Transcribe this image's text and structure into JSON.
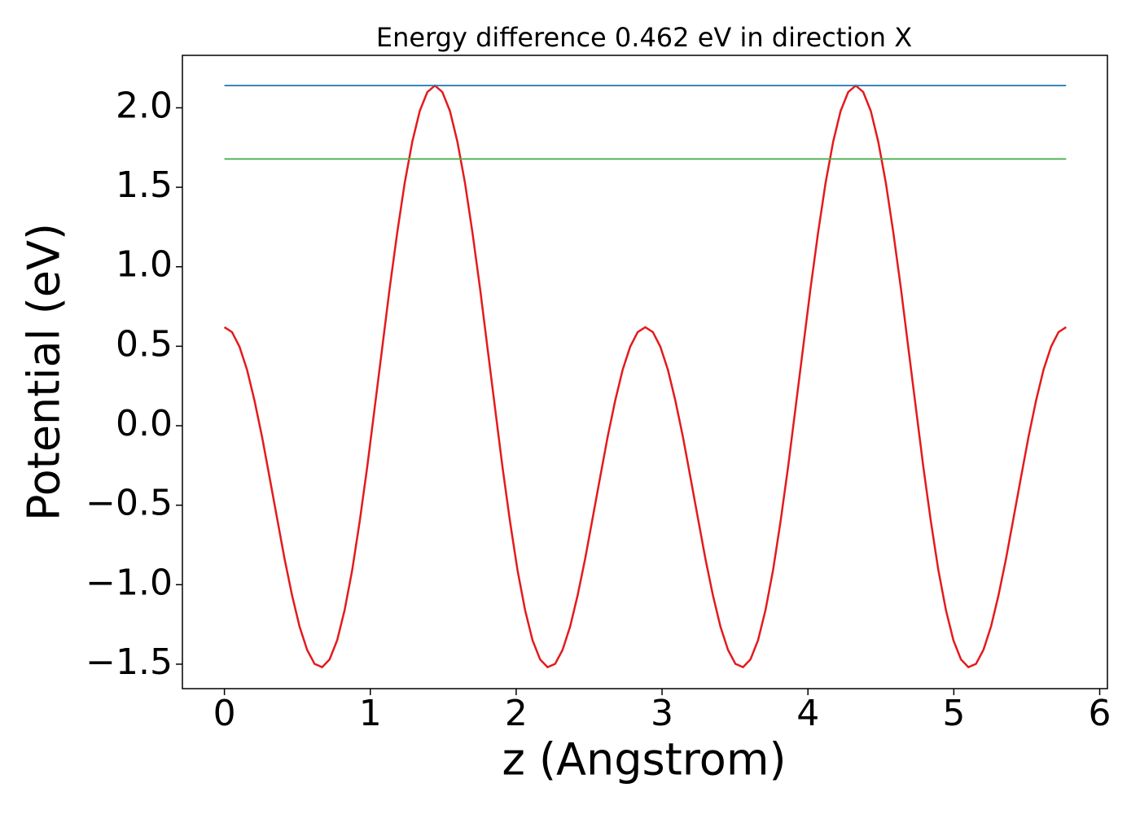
{
  "chart_data": {
    "type": "line",
    "title": "Energy difference 0.462 eV in direction X",
    "xlabel": "z (Angstrom)",
    "ylabel": "Potential (eV)",
    "xlim": [
      -0.288,
      6.053
    ],
    "ylim": [
      -1.654,
      2.33
    ],
    "xticks": [
      0,
      1,
      2,
      3,
      4,
      5,
      6
    ],
    "yticks": [
      {
        "value": -1.5,
        "label": "−1.5"
      },
      {
        "value": -1.0,
        "label": "−1.0"
      },
      {
        "value": -0.5,
        "label": "−0.5"
      },
      {
        "value": 0,
        "label": "0.0"
      },
      0.5,
      {
        "value": 1.0,
        "label": "1.0"
      },
      1.5,
      {
        "value": 2.0,
        "label": "2.0"
      }
    ],
    "series": [
      {
        "color": "#e41a1c",
        "x": [
          0,
          0.052,
          0.103,
          0.155,
          0.206,
          0.258,
          0.309,
          0.361,
          0.412,
          0.464,
          0.515,
          0.567,
          0.618,
          0.67,
          0.721,
          0.773,
          0.824,
          0.876,
          0.927,
          0.979,
          1.03,
          1.082,
          1.133,
          1.185,
          1.236,
          1.288,
          1.339,
          1.391,
          1.443,
          1.494,
          1.546,
          1.597,
          1.649,
          1.7,
          1.752,
          1.803,
          1.855,
          1.906,
          1.958,
          2.009,
          2.061,
          2.112,
          2.164,
          2.215,
          2.267,
          2.318,
          2.37,
          2.421,
          2.473,
          2.524,
          2.576,
          2.627,
          2.679,
          2.73,
          2.782,
          2.833,
          2.885,
          2.937,
          2.988,
          3.04,
          3.091,
          3.143,
          3.194,
          3.246,
          3.297,
          3.349,
          3.4,
          3.452,
          3.503,
          3.555,
          3.606,
          3.658,
          3.709,
          3.761,
          3.812,
          3.864,
          3.915,
          3.967,
          4.018,
          4.07,
          4.121,
          4.173,
          4.224,
          4.276,
          4.328,
          4.379,
          4.431,
          4.482,
          4.534,
          4.585,
          4.637,
          4.688,
          4.74,
          4.791,
          4.843,
          4.894,
          4.946,
          4.997,
          5.049,
          5.1,
          5.152,
          5.203,
          5.255,
          5.306,
          5.358,
          5.409,
          5.461,
          5.512,
          5.564,
          5.615,
          5.667,
          5.718,
          5.77
        ],
        "values": [
          0.62,
          0.589,
          0.498,
          0.352,
          0.159,
          -0.07,
          -0.322,
          -0.582,
          -0.836,
          -1.068,
          -1.263,
          -1.41,
          -1.498,
          -1.519,
          -1.47,
          -1.349,
          -1.16,
          -0.908,
          -0.604,
          -0.259,
          0.112,
          0.492,
          0.866,
          1.217,
          1.528,
          1.787,
          1.98,
          2.099,
          2.14,
          2.099,
          1.98,
          1.787,
          1.528,
          1.217,
          0.866,
          0.492,
          0.112,
          -0.259,
          -0.604,
          -0.908,
          -1.16,
          -1.349,
          -1.47,
          -1.519,
          -1.498,
          -1.41,
          -1.263,
          -1.068,
          -0.836,
          -0.582,
          -0.322,
          -0.07,
          0.159,
          0.352,
          0.498,
          0.589,
          0.62,
          0.589,
          0.498,
          0.352,
          0.159,
          -0.07,
          -0.322,
          -0.582,
          -0.836,
          -1.068,
          -1.263,
          -1.41,
          -1.498,
          -1.519,
          -1.47,
          -1.349,
          -1.16,
          -0.908,
          -0.604,
          -0.259,
          0.112,
          0.492,
          0.866,
          1.217,
          1.528,
          1.787,
          1.98,
          2.099,
          2.14,
          2.099,
          1.98,
          1.787,
          1.528,
          1.217,
          0.866,
          0.492,
          0.112,
          -0.259,
          -0.604,
          -0.908,
          -1.16,
          -1.349,
          -1.47,
          -1.519,
          -1.498,
          -1.41,
          -1.263,
          -1.068,
          -0.836,
          -0.582,
          -0.322,
          -0.07,
          0.159,
          0.352,
          0.498,
          0.589,
          0.62
        ]
      },
      {
        "color": "#1f77b4",
        "x": [
          0,
          5.77
        ],
        "values": [
          2.14,
          2.14
        ]
      },
      {
        "color": "#4caf50",
        "x": [
          0,
          5.77
        ],
        "values": [
          1.678,
          1.678
        ]
      }
    ]
  }
}
